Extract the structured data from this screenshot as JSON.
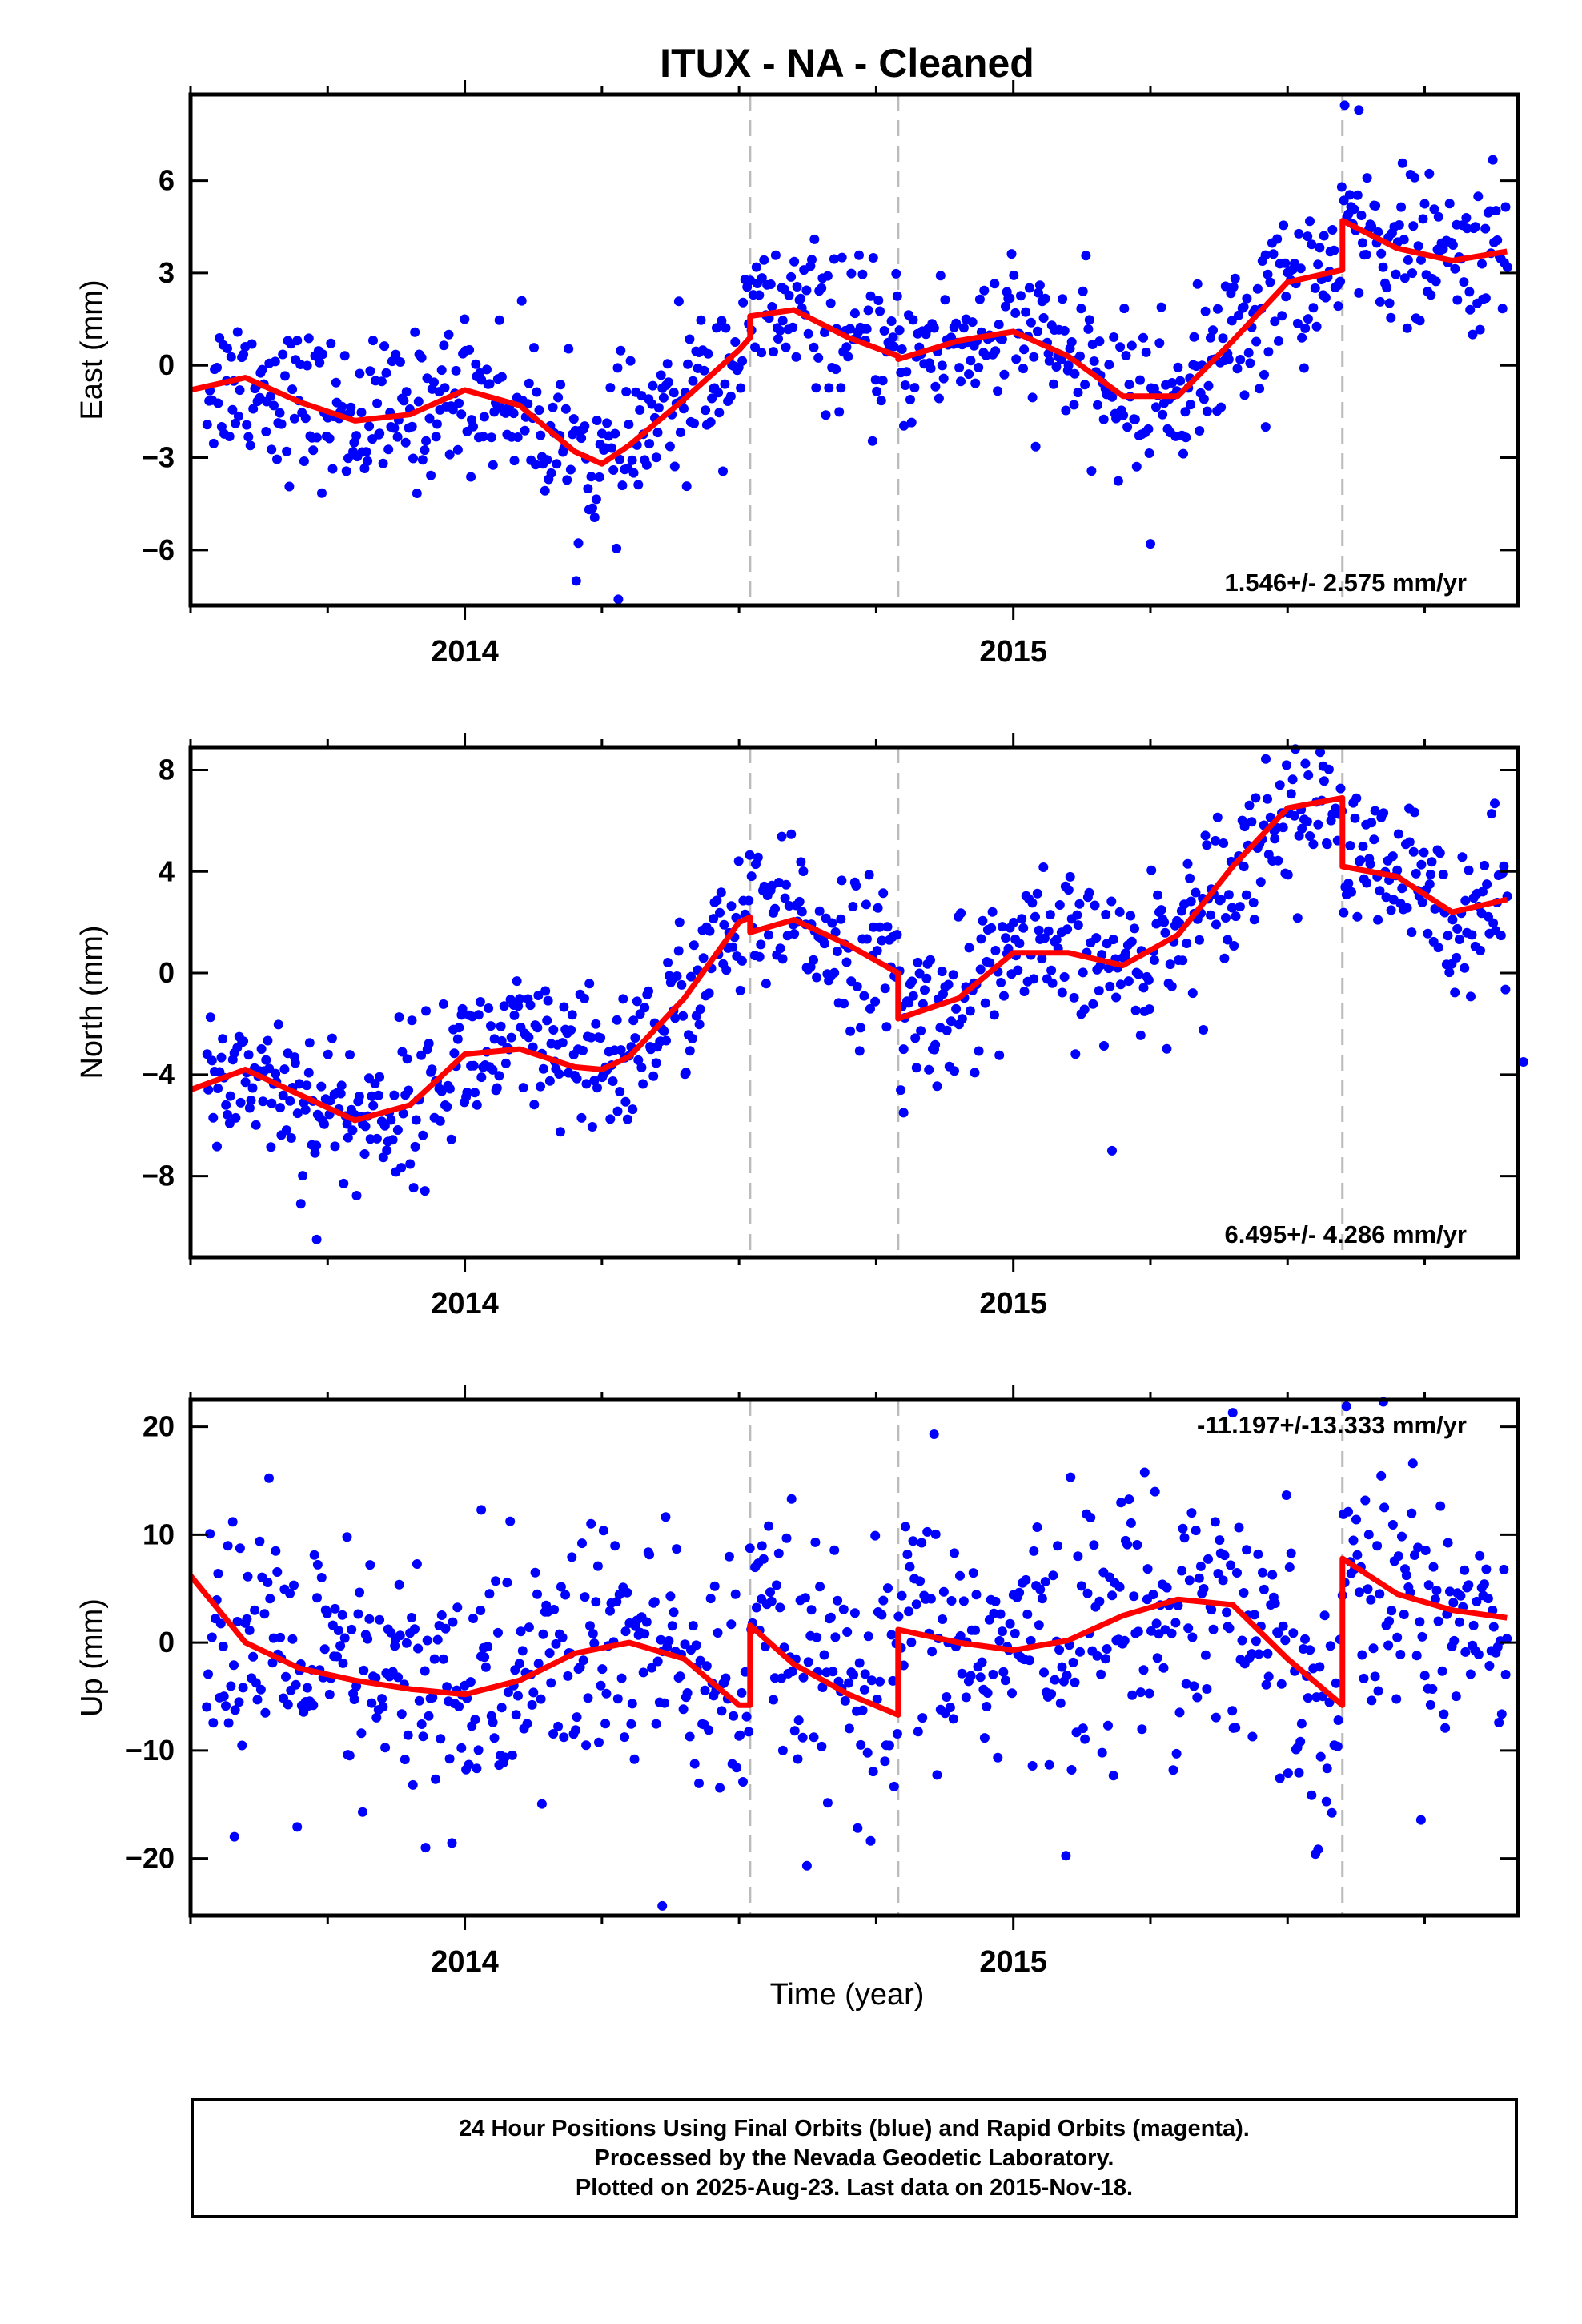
{
  "chart_data": {
    "title": "ITUX  - NA - Cleaned",
    "type": "scatter",
    "x_axis": {
      "label": "Time (year)",
      "range": [
        2013.5,
        2015.92
      ],
      "ticks": [
        2014,
        2015
      ],
      "tick_labels": [
        "2014",
        "2015"
      ],
      "minor_ticks": [
        2013.5,
        2013.75,
        2014.25,
        2014.5,
        2014.75,
        2015.25,
        2015.5,
        2015.75
      ]
    },
    "offsets_years": [
      2014.52,
      2014.79,
      2015.6
    ],
    "colors": {
      "points": "#0000ff",
      "model": "#ff0000",
      "offset_lines": "#bbbbbb"
    },
    "panels": [
      {
        "name": "East",
        "ylabel": "East (mm)",
        "ylim": [
          -7.8,
          8.8
        ],
        "yticks": [
          -6,
          -3,
          0,
          3,
          6
        ],
        "ytick_labels": [
          "−6",
          "−3",
          "0",
          "3",
          "6"
        ],
        "rate_label": "1.546+/- 2.575 mm/yr",
        "rate_position": "bottom-right",
        "model_points": [
          [
            2013.5,
            -0.8
          ],
          [
            2013.6,
            -0.4
          ],
          [
            2013.7,
            -1.2
          ],
          [
            2013.8,
            -1.8
          ],
          [
            2013.9,
            -1.6
          ],
          [
            2014.0,
            -0.8
          ],
          [
            2014.1,
            -1.3
          ],
          [
            2014.2,
            -2.8
          ],
          [
            2014.25,
            -3.2
          ],
          [
            2014.3,
            -2.6
          ],
          [
            2014.4,
            -1.1
          ],
          [
            2014.5,
            0.5
          ],
          [
            2014.52,
            0.9
          ],
          [
            2014.52,
            1.6
          ],
          [
            2014.6,
            1.8
          ],
          [
            2014.7,
            0.9
          ],
          [
            2014.79,
            0.3
          ],
          [
            2014.79,
            0.2
          ],
          [
            2014.9,
            0.8
          ],
          [
            2015.0,
            1.1
          ],
          [
            2015.1,
            0.3
          ],
          [
            2015.2,
            -1.0
          ],
          [
            2015.3,
            -1.0
          ],
          [
            2015.4,
            0.8
          ],
          [
            2015.5,
            2.7
          ],
          [
            2015.6,
            3.1
          ],
          [
            2015.6,
            4.7
          ],
          [
            2015.7,
            3.8
          ],
          [
            2015.8,
            3.4
          ],
          [
            2015.9,
            3.7
          ]
        ],
        "observations": {
          "description": "daily 24-hour positions (blue dots)",
          "count": 820,
          "scatter_mm": 1.2,
          "outliers": [
            [
              2015.46,
              -2.0
            ],
            [
              2014.28,
              -7.6
            ],
            [
              2015.25,
              -5.8
            ],
            [
              2015.63,
              8.3
            ]
          ]
        }
      },
      {
        "name": "North",
        "ylabel": "North (mm)",
        "ylim": [
          -11.2,
          8.9
        ],
        "yticks": [
          -8,
          -4,
          0,
          4,
          8
        ],
        "ytick_labels": [
          "−8",
          "−4",
          "0",
          "4",
          "8"
        ],
        "rate_label": "6.495+/- 4.286 mm/yr",
        "rate_position": "bottom-right",
        "model_points": [
          [
            2013.5,
            -4.6
          ],
          [
            2013.6,
            -3.8
          ],
          [
            2013.7,
            -4.8
          ],
          [
            2013.8,
            -5.8
          ],
          [
            2013.9,
            -5.2
          ],
          [
            2014.0,
            -3.2
          ],
          [
            2014.1,
            -3.0
          ],
          [
            2014.2,
            -3.7
          ],
          [
            2014.25,
            -3.8
          ],
          [
            2014.3,
            -3.3
          ],
          [
            2014.4,
            -1.0
          ],
          [
            2014.5,
            2.0
          ],
          [
            2014.52,
            2.2
          ],
          [
            2014.52,
            1.6
          ],
          [
            2014.6,
            2.1
          ],
          [
            2014.7,
            1.1
          ],
          [
            2014.79,
            0.0
          ],
          [
            2014.79,
            -1.8
          ],
          [
            2014.9,
            -1.0
          ],
          [
            2015.0,
            0.8
          ],
          [
            2015.1,
            0.8
          ],
          [
            2015.2,
            0.3
          ],
          [
            2015.3,
            1.5
          ],
          [
            2015.4,
            4.2
          ],
          [
            2015.5,
            6.5
          ],
          [
            2015.6,
            6.9
          ],
          [
            2015.6,
            4.2
          ],
          [
            2015.7,
            3.8
          ],
          [
            2015.8,
            2.4
          ],
          [
            2015.9,
            2.9
          ]
        ],
        "observations": {
          "description": "daily 24-hour positions (blue dots)",
          "count": 820,
          "scatter_mm": 1.5,
          "outliers": [
            [
              2013.73,
              -10.5
            ],
            [
              2015.18,
              -7.0
            ],
            [
              2015.93,
              -3.5
            ],
            [
              2014.8,
              -5.5
            ]
          ]
        }
      },
      {
        "name": "Up",
        "ylabel": "Up (mm)",
        "ylim": [
          -25.3,
          22.5
        ],
        "yticks": [
          -20,
          -10,
          0,
          10,
          20
        ],
        "ytick_labels": [
          "−20",
          "−10",
          "0",
          "10",
          "20"
        ],
        "rate_label": "-11.197+/-13.333 mm/yr",
        "rate_position": "top-right",
        "model_points": [
          [
            2013.5,
            6.2
          ],
          [
            2013.6,
            0.0
          ],
          [
            2013.7,
            -2.4
          ],
          [
            2013.8,
            -3.5
          ],
          [
            2013.9,
            -4.3
          ],
          [
            2014.0,
            -4.8
          ],
          [
            2014.1,
            -3.5
          ],
          [
            2014.2,
            -1.0
          ],
          [
            2014.3,
            0.0
          ],
          [
            2014.4,
            -1.5
          ],
          [
            2014.5,
            -5.8
          ],
          [
            2014.52,
            -5.8
          ],
          [
            2014.52,
            1.6
          ],
          [
            2014.6,
            -2.0
          ],
          [
            2014.7,
            -4.8
          ],
          [
            2014.79,
            -6.7
          ],
          [
            2014.79,
            1.2
          ],
          [
            2014.9,
            0.0
          ],
          [
            2015.0,
            -0.7
          ],
          [
            2015.1,
            0.2
          ],
          [
            2015.2,
            2.5
          ],
          [
            2015.3,
            4.0
          ],
          [
            2015.4,
            3.5
          ],
          [
            2015.5,
            -1.5
          ],
          [
            2015.6,
            -5.8
          ],
          [
            2015.6,
            7.8
          ],
          [
            2015.7,
            4.5
          ],
          [
            2015.8,
            3.0
          ],
          [
            2015.9,
            2.3
          ]
        ],
        "observations": {
          "description": "daily 24-hour positions (blue dots)",
          "count": 820,
          "scatter_mm": 6.0,
          "outliers": [
            [
              2014.36,
              -24.4
            ],
            [
              2014.03,
              12.3
            ],
            [
              2015.4,
              21.3
            ],
            [
              2013.58,
              -18.0
            ]
          ]
        }
      }
    ]
  },
  "footer": {
    "line1": "24 Hour Positions Using Final Orbits (blue) and Rapid Orbits (magenta).",
    "line2": "Processed by the Nevada Geodetic Laboratory.",
    "line3": "Plotted on 2025-Aug-23. Last data on 2015-Nov-18."
  }
}
